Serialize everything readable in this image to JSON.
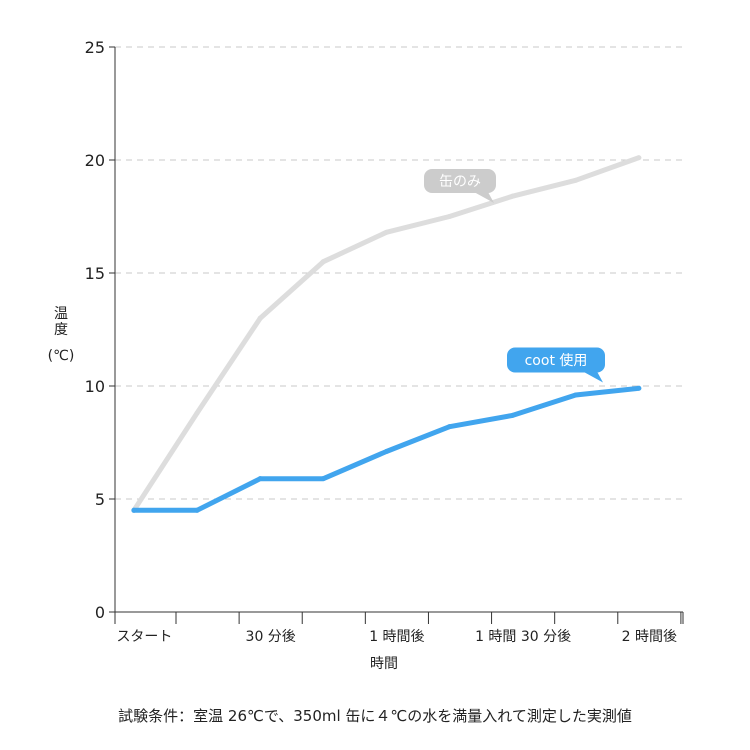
{
  "chart_data": {
    "type": "line",
    "title": "",
    "xlabel": "時間",
    "ylabel": [
      "温",
      "度",
      "(℃)"
    ],
    "ylim": [
      0,
      25
    ],
    "yticks": [
      0,
      5,
      10,
      15,
      20,
      25
    ],
    "grid": true,
    "x_ticks": [
      {
        "label": "スタート",
        "x": 0
      },
      {
        "label": "30 分後",
        "x": 30
      },
      {
        "label": "1 時間後",
        "x": 60
      },
      {
        "label": "1 時間 30 分後",
        "x": 90
      },
      {
        "label": "2 時間後",
        "x": 120
      }
    ],
    "xlim": [
      -7,
      128
    ],
    "series": [
      {
        "name": "缶のみ",
        "color": "#dddddd",
        "x": [
          -2.5,
          12.5,
          27.5,
          42.5,
          57.5,
          72.5,
          87.5,
          102.5,
          117.5
        ],
        "y": [
          4.5,
          8.8,
          13.0,
          15.5,
          16.8,
          17.5,
          18.4,
          19.1,
          20.1
        ]
      },
      {
        "name": "coot 使用",
        "color": "#41a5ee",
        "x": [
          -2.5,
          12.5,
          27.5,
          42.5,
          57.5,
          72.5,
          87.5,
          102.5,
          117.5
        ],
        "y": [
          4.5,
          4.5,
          5.9,
          5.9,
          7.1,
          8.2,
          8.7,
          9.6,
          9.9
        ]
      }
    ],
    "annotations": [
      {
        "text": "缶のみ",
        "series": 0
      },
      {
        "text": "coot 使用",
        "series": 1
      }
    ],
    "note": "試験条件：室温 26℃で、350ml 缶に４℃の水を満量入れて測定した実測値"
  }
}
